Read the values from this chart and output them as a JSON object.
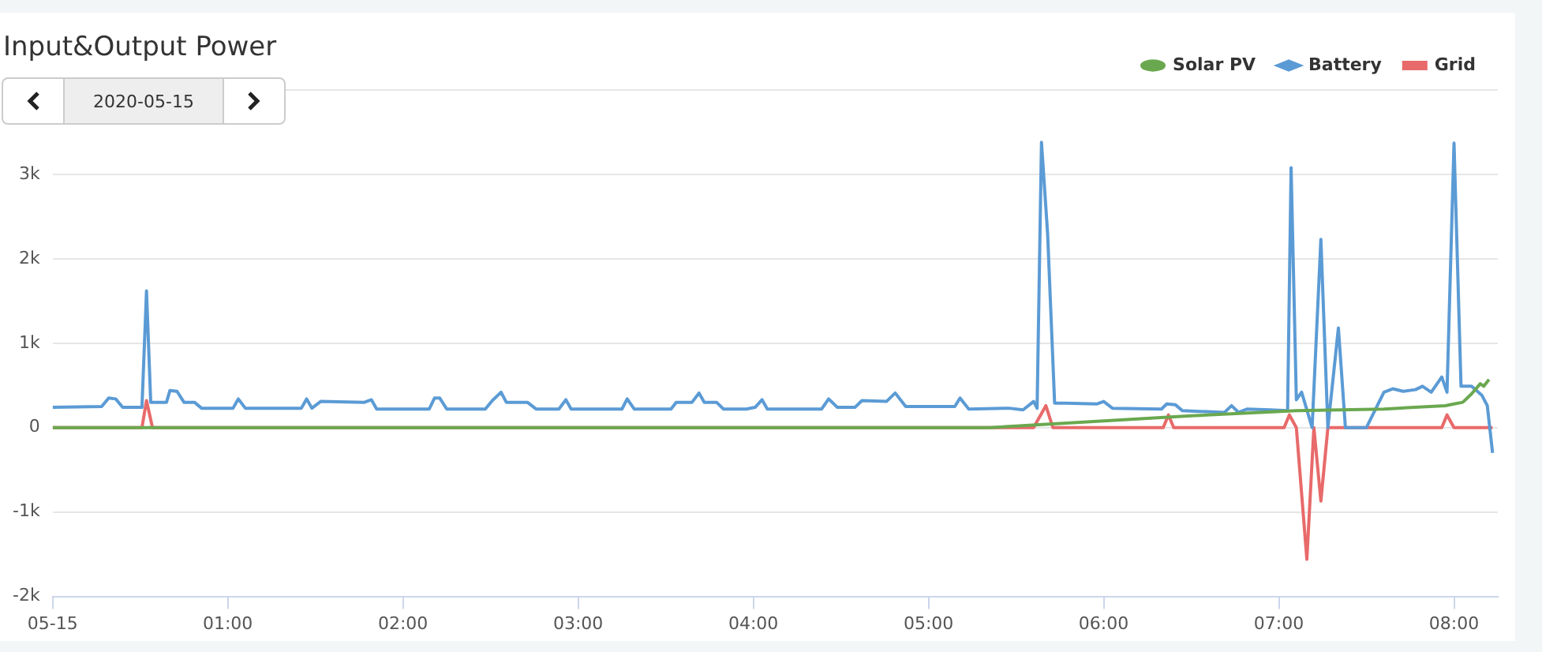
{
  "chart_data": {
    "type": "line",
    "title": "Input&Output Power",
    "subtitle": "2020-05-15",
    "xlim": [
      0,
      8.25
    ],
    "xticks": [
      {
        "value": 0,
        "label": "05-15"
      },
      {
        "value": 1,
        "label": "01:00"
      },
      {
        "value": 2,
        "label": "02:00"
      },
      {
        "value": 3,
        "label": "03:00"
      },
      {
        "value": 4,
        "label": "04:00"
      },
      {
        "value": 5,
        "label": "05:00"
      },
      {
        "value": 6,
        "label": "06:00"
      },
      {
        "value": 7,
        "label": "07:00"
      },
      {
        "value": 8,
        "label": "08:00"
      }
    ],
    "ylim": [
      -2000,
      4000
    ],
    "yticks": [
      {
        "value": -2000,
        "label": "-2k"
      },
      {
        "value": -1000,
        "label": "-1k"
      },
      0,
      {
        "value": 1000,
        "label": "1k"
      },
      {
        "value": 2000,
        "label": "2k"
      },
      {
        "value": 3000,
        "label": "3k"
      },
      {
        "value": 4000,
        "label": null
      }
    ],
    "grid": "y",
    "legend": "top right",
    "series": [
      {
        "name": "Solar PV",
        "color": "#6aa84f",
        "x": [
          0,
          5.35,
          6.0,
          6.5,
          7.1,
          7.6,
          7.95,
          8.0,
          8.05,
          8.1,
          8.15,
          8.17,
          8.2
        ],
        "values": [
          0,
          0,
          80,
          140,
          200,
          220,
          260,
          280,
          300,
          400,
          520,
          490,
          570
        ]
      },
      {
        "name": "Battery",
        "color": "#5b9bd5",
        "x": [
          0,
          0.28,
          0.32,
          0.36,
          0.4,
          0.51,
          0.536,
          0.56,
          0.65,
          0.67,
          0.71,
          0.75,
          0.81,
          0.85,
          1.03,
          1.06,
          1.1,
          1.42,
          1.45,
          1.48,
          1.53,
          1.78,
          1.82,
          1.85,
          2.15,
          2.18,
          2.21,
          2.25,
          2.47,
          2.51,
          2.56,
          2.59,
          2.71,
          2.76,
          2.89,
          2.93,
          2.96,
          2.99,
          3.25,
          3.28,
          3.32,
          3.53,
          3.56,
          3.65,
          3.69,
          3.72,
          3.79,
          3.83,
          3.96,
          4.01,
          4.05,
          4.08,
          4.39,
          4.43,
          4.48,
          4.58,
          4.62,
          4.76,
          4.81,
          4.87,
          5.15,
          5.18,
          5.23,
          5.46,
          5.54,
          5.6,
          5.62,
          5.645,
          5.68,
          5.72,
          5.78,
          5.96,
          6.0,
          6.05,
          6.33,
          6.36,
          6.41,
          6.45,
          6.69,
          6.73,
          6.77,
          6.82,
          6.95,
          7.05,
          7.07,
          7.1,
          7.13,
          7.19,
          7.24,
          7.28,
          7.34,
          7.38,
          7.5,
          7.6,
          7.65,
          7.71,
          7.78,
          7.82,
          7.87,
          7.93,
          7.96,
          8.0,
          8.04,
          8.1,
          8.16,
          8.19,
          8.22
        ],
        "values": [
          240,
          250,
          350,
          340,
          240,
          240,
          1620,
          300,
          300,
          440,
          430,
          300,
          300,
          230,
          230,
          340,
          230,
          230,
          340,
          230,
          310,
          300,
          330,
          220,
          220,
          350,
          350,
          220,
          220,
          320,
          420,
          300,
          300,
          220,
          220,
          330,
          220,
          220,
          220,
          340,
          220,
          220,
          300,
          300,
          410,
          300,
          300,
          220,
          220,
          240,
          330,
          220,
          220,
          340,
          240,
          240,
          320,
          310,
          410,
          250,
          250,
          350,
          220,
          230,
          210,
          310,
          230,
          3380,
          2300,
          290,
          290,
          280,
          310,
          230,
          220,
          280,
          270,
          200,
          180,
          260,
          180,
          220,
          210,
          200,
          3080,
          330,
          420,
          0,
          2230,
          0,
          1180,
          0,
          0,
          420,
          460,
          430,
          450,
          490,
          420,
          600,
          420,
          3370,
          490,
          490,
          380,
          260,
          -300
        ]
      },
      {
        "name": "Grid",
        "color": "#e86a6a",
        "x": [
          0,
          0.51,
          0.536,
          0.57,
          5.6,
          5.67,
          5.71,
          6.34,
          6.37,
          6.4,
          7.03,
          7.06,
          7.1,
          7.16,
          7.2,
          7.24,
          7.28,
          7.93,
          7.96,
          8.0,
          8.22
        ],
        "values": [
          0,
          0,
          320,
          0,
          0,
          260,
          0,
          0,
          150,
          0,
          0,
          150,
          0,
          -1560,
          0,
          -870,
          0,
          0,
          150,
          0,
          0
        ]
      }
    ]
  }
}
